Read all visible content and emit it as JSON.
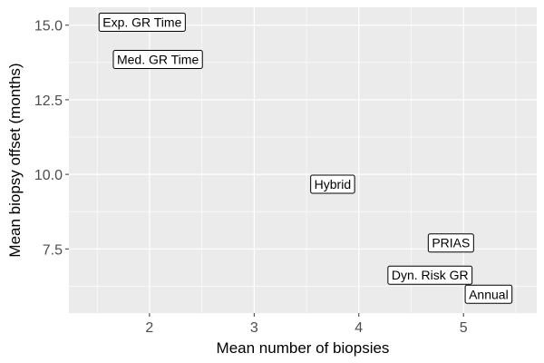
{
  "chart_data": {
    "type": "scatter",
    "title": "",
    "xlabel": "Mean number of biopsies",
    "ylabel": "Mean biopsy offset (months)",
    "xlim": [
      1.23,
      5.7
    ],
    "ylim": [
      5.35,
      15.6
    ],
    "x_ticks": [
      2,
      3,
      4,
      5
    ],
    "x_minor_ticks": [
      1.5,
      2.5,
      3.5,
      4.5,
      5.5
    ],
    "y_ticks": [
      7.5,
      10.0,
      12.5,
      15.0
    ],
    "y_minor_ticks": [
      6.25,
      8.75,
      11.25,
      13.75
    ],
    "x_tick_labels": [
      "2",
      "3",
      "4",
      "5"
    ],
    "y_tick_labels": [
      "7.5",
      "10.0",
      "12.5",
      "15.0"
    ],
    "grid": true,
    "panel_background": "#ebebeb",
    "grid_color": "#ffffff",
    "points": [
      {
        "label": "Exp. GR Time",
        "x": 1.93,
        "y": 15.1
      },
      {
        "label": "Med. GR Time",
        "x": 2.08,
        "y": 13.85
      },
      {
        "label": "Hybrid",
        "x": 3.75,
        "y": 9.67
      },
      {
        "label": "PRIAS",
        "x": 4.88,
        "y": 7.7
      },
      {
        "label": "Dyn. Risk GR",
        "x": 4.68,
        "y": 6.62
      },
      {
        "label": "Annual",
        "x": 5.24,
        "y": 5.98
      }
    ]
  }
}
